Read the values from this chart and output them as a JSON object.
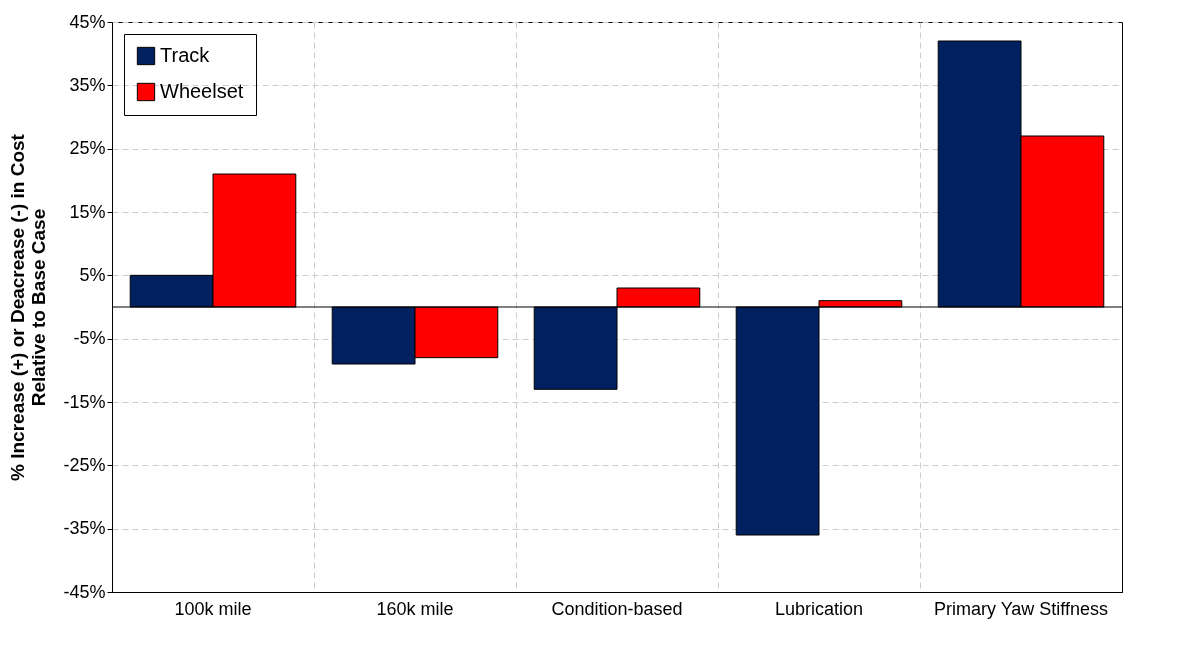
{
  "chart_data": {
    "type": "bar",
    "ylabel": "% Increase (+) or Deacrease (-) in Cost\nRelative to Base Case",
    "categories": [
      "100k mile",
      "160k mile",
      "Condition-based",
      "Lubrication",
      "Primary Yaw Stiffness"
    ],
    "series": [
      {
        "name": "Track",
        "color": "#002060",
        "values": [
          5,
          -9,
          -13,
          -36,
          42
        ]
      },
      {
        "name": "Wheelset",
        "color": "#ff0000",
        "values": [
          21,
          -8,
          3,
          1,
          27
        ]
      }
    ],
    "ylim": [
      -45,
      45
    ],
    "yticks": [
      {
        "value": -45,
        "label": "-45%"
      },
      {
        "value": -35,
        "label": "-35%"
      },
      {
        "value": -25,
        "label": "-25%"
      },
      {
        "value": -15,
        "label": "-15%"
      },
      {
        "value": -5,
        "label": "-5%"
      },
      {
        "value": 5,
        "label": "5%"
      },
      {
        "value": 15,
        "label": "15%"
      },
      {
        "value": 25,
        "label": "25%"
      },
      {
        "value": 35,
        "label": "35%"
      },
      {
        "value": 45,
        "label": "45%"
      }
    ],
    "ref_lines": [
      {
        "axis": "y",
        "value": 0,
        "color": "#000000"
      }
    ],
    "grid": true,
    "legend": "top left"
  }
}
